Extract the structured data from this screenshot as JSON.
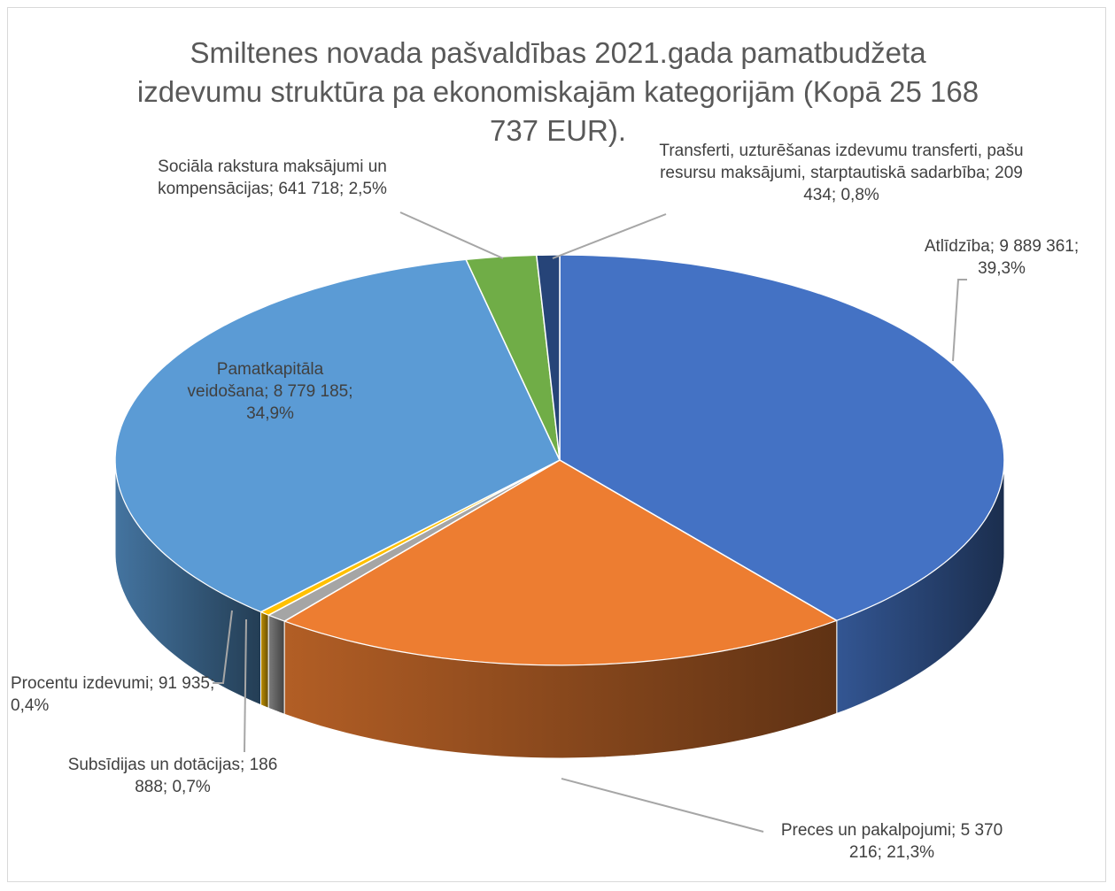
{
  "chart_data": {
    "type": "pie3d",
    "title": "Smiltenes novada pašvaldības 2021.gada pamatbudžeta izdevumu struktūra pa ekonomiskajām kategorijām (Kopā 25 168 737 EUR).",
    "categories": [
      "Atlīdzība",
      "Preces un pakalpojumi",
      "Subsīdijas un dotācijas",
      "Procentu izdevumi",
      "Pamatkapitāla veidošana",
      "Sociāla rakstura maksājumi un kompensācijas",
      "Transferti, uzturēšanas izdevumu transferti, pašu resursu maksājumi, starptautiskā sadarbība"
    ],
    "values": [
      9889361,
      5370216,
      186888,
      91935,
      8779185,
      641718,
      209434
    ],
    "value_labels": [
      "9 889 361",
      "5 370 216",
      "186 888",
      "91 935",
      "8 779 185",
      "641 718",
      "209 434"
    ],
    "percents": [
      39.3,
      21.3,
      0.7,
      0.4,
      34.9,
      2.5,
      0.8
    ],
    "percent_labels": [
      "39,3%",
      "21,3%",
      "0,7%",
      "0,4%",
      "34,9%",
      "2,5%",
      "0,8%"
    ],
    "colors": [
      "#4472c4",
      "#ed7d31",
      "#a5a5a5",
      "#ffc000",
      "#5b9bd5",
      "#70ad47",
      "#264478"
    ]
  }
}
